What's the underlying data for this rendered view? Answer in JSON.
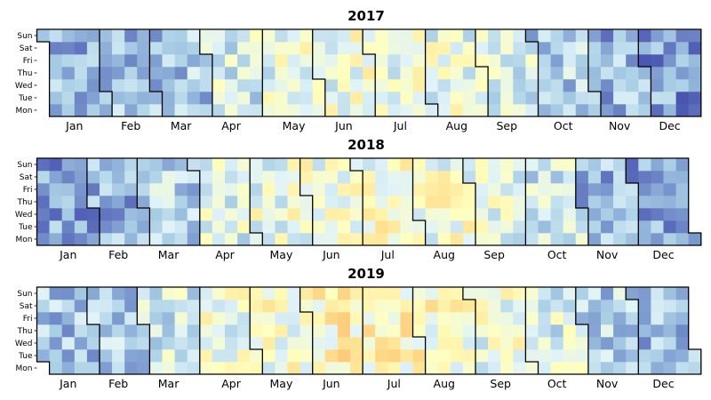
{
  "chart_data": [
    {
      "type": "heatmap",
      "title": "2017",
      "year": 2017,
      "weekday_labels": [
        "Sun",
        "Sat",
        "Fri",
        "Thu",
        "Wed",
        "Tue",
        "Mon"
      ],
      "month_labels": [
        "Jan",
        "Feb",
        "Mar",
        "Apr",
        "May",
        "Jun",
        "Jul",
        "Aug",
        "Sep",
        "Oct",
        "Nov",
        "Dec"
      ],
      "layout": "columns are weeks (Monday-start), rows Mon (bottom) to Sun (top); black lines mark month boundaries",
      "monthly_value_level": [
        0.24,
        0.28,
        0.33,
        0.46,
        0.55,
        0.58,
        0.57,
        0.54,
        0.48,
        0.34,
        0.27,
        0.2
      ],
      "colormap": [
        "#4a55b0",
        "#7e9cd0",
        "#abd0e6",
        "#e0f3f8",
        "#ffffbf",
        "#fee090",
        "#fdae61"
      ]
    },
    {
      "type": "heatmap",
      "title": "2018",
      "year": 2018,
      "weekday_labels": [
        "Sun",
        "Sat",
        "Fri",
        "Thu",
        "Wed",
        "Tue",
        "Mon"
      ],
      "month_labels": [
        "Jan",
        "Feb",
        "Mar",
        "Apr",
        "May",
        "Jun",
        "Jul",
        "Aug",
        "Sep",
        "Oct",
        "Nov",
        "Dec"
      ],
      "layout": "columns are weeks (Monday-start), rows Mon (bottom) to Sun (top); black lines mark month boundaries",
      "monthly_value_level": [
        0.23,
        0.26,
        0.36,
        0.5,
        0.57,
        0.6,
        0.62,
        0.6,
        0.52,
        0.44,
        0.27,
        0.25
      ],
      "colormap": [
        "#4a55b0",
        "#7e9cd0",
        "#abd0e6",
        "#e0f3f8",
        "#ffffbf",
        "#fee090",
        "#fdae61"
      ]
    },
    {
      "type": "heatmap",
      "title": "2019",
      "year": 2019,
      "weekday_labels": [
        "Sun",
        "Sat",
        "Fri",
        "Thu",
        "Wed",
        "Tue",
        "Mon"
      ],
      "month_labels": [
        "Jan",
        "Feb",
        "Mar",
        "Apr",
        "May",
        "Jun",
        "Jul",
        "Aug",
        "Sep",
        "Oct",
        "Nov",
        "Dec"
      ],
      "layout": "columns are weeks (Monday-start), rows Mon (bottom) to Sun (top); black lines mark month boundaries",
      "monthly_value_level": [
        0.32,
        0.36,
        0.46,
        0.56,
        0.63,
        0.7,
        0.68,
        0.65,
        0.58,
        0.5,
        0.36,
        0.28
      ],
      "colormap": [
        "#4a55b0",
        "#7e9cd0",
        "#abd0e6",
        "#e0f3f8",
        "#ffffbf",
        "#fee090",
        "#fdae61"
      ]
    }
  ]
}
